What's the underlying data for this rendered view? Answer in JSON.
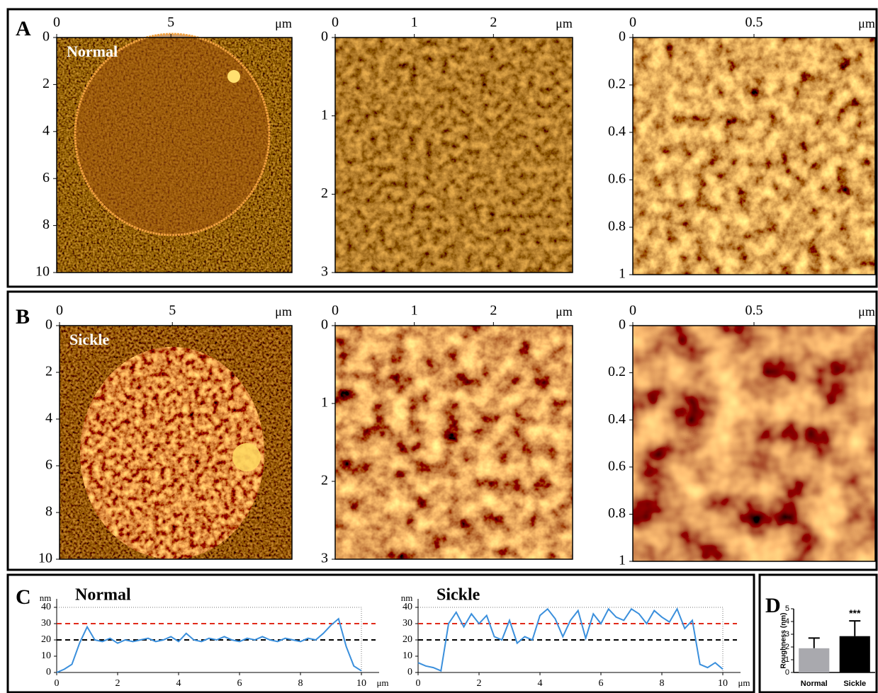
{
  "chart_data": [
    {
      "type": "image",
      "panel_label": "A",
      "annotation": "Normal",
      "x_unit": "μm",
      "xlim": [
        0,
        10.3
      ],
      "xticks": [
        0,
        5
      ],
      "ylim": [
        0,
        10
      ],
      "yticks": [
        0,
        2,
        4,
        6,
        8,
        10
      ]
    },
    {
      "type": "image",
      "x_unit": "μm",
      "xlim": [
        0,
        3
      ],
      "xticks": [
        0,
        1,
        2
      ],
      "ylim": [
        0,
        3
      ],
      "yticks": [
        0,
        1,
        2,
        3
      ]
    },
    {
      "type": "image",
      "x_unit": "μm",
      "xlim": [
        0,
        1
      ],
      "xticks": [
        0,
        0.5
      ],
      "ylim": [
        0,
        1
      ],
      "yticks": [
        0,
        0.2,
        0.4,
        0.6,
        0.8,
        1
      ]
    },
    {
      "type": "image",
      "panel_label": "B",
      "annotation": "Sickle",
      "x_unit": "μm",
      "xlim": [
        0,
        10.3
      ],
      "xticks": [
        0,
        5
      ],
      "ylim": [
        0,
        10
      ],
      "yticks": [
        0,
        2,
        4,
        6,
        8,
        10
      ]
    },
    {
      "type": "image",
      "x_unit": "μm",
      "xlim": [
        0,
        3
      ],
      "xticks": [
        0,
        1,
        2
      ],
      "ylim": [
        0,
        3
      ],
      "yticks": [
        0,
        1,
        2,
        3
      ]
    },
    {
      "type": "image",
      "x_unit": "μm",
      "xlim": [
        0,
        1
      ],
      "xticks": [
        0,
        0.5
      ],
      "ylim": [
        0,
        1
      ],
      "yticks": [
        0,
        0.2,
        0.4,
        0.6,
        0.8,
        1
      ]
    },
    {
      "type": "line",
      "panel_label": "C",
      "title": "Normal",
      "y_unit": "nm",
      "x_unit": "μm",
      "x": [
        0,
        0.25,
        0.5,
        0.75,
        1,
        1.25,
        1.5,
        1.75,
        2,
        2.25,
        2.5,
        2.75,
        3,
        3.25,
        3.5,
        3.75,
        4,
        4.25,
        4.5,
        4.75,
        5,
        5.25,
        5.5,
        5.75,
        6,
        6.25,
        6.5,
        6.75,
        7,
        7.25,
        7.5,
        7.75,
        8,
        8.25,
        8.5,
        8.75,
        9,
        9.25,
        9.5,
        9.75,
        10
      ],
      "series": [
        {
          "color": "#3a8fdc",
          "values": [
            0,
            2,
            5,
            18,
            28,
            20,
            19,
            21,
            18,
            20,
            19,
            20,
            21,
            19,
            20,
            22,
            19,
            24,
            20,
            19,
            21,
            20,
            22,
            20,
            19,
            21,
            20,
            22,
            20,
            19,
            21,
            20,
            19,
            21,
            20,
            24,
            29,
            33,
            16,
            4,
            1
          ]
        }
      ],
      "reference_lines": [
        {
          "value": 30,
          "color": "#e02a1a"
        },
        {
          "value": 20,
          "color": "#000000"
        }
      ],
      "xlim": [
        0,
        10
      ],
      "xticks": [
        0,
        2,
        4,
        6,
        8,
        10
      ],
      "ylim": [
        0,
        40
      ],
      "yticks": [
        0,
        10,
        20,
        30,
        40
      ]
    },
    {
      "type": "line",
      "title": "Sickle",
      "y_unit": "nm",
      "x_unit": "μm",
      "x": [
        0,
        0.25,
        0.5,
        0.75,
        1,
        1.25,
        1.5,
        1.75,
        2,
        2.25,
        2.5,
        2.75,
        3,
        3.25,
        3.5,
        3.75,
        4,
        4.25,
        4.5,
        4.75,
        5,
        5.25,
        5.5,
        5.75,
        6,
        6.25,
        6.5,
        6.75,
        7,
        7.25,
        7.5,
        7.75,
        8,
        8.25,
        8.5,
        8.75,
        9,
        9.25,
        9.5,
        9.75,
        10
      ],
      "series": [
        {
          "color": "#3a8fdc",
          "values": [
            6,
            4,
            3,
            1,
            30,
            37,
            28,
            36,
            30,
            35,
            22,
            20,
            32,
            18,
            22,
            20,
            35,
            39,
            33,
            22,
            32,
            38,
            21,
            36,
            30,
            39,
            34,
            32,
            39,
            36,
            30,
            38,
            34,
            31,
            39,
            27,
            32,
            5,
            3,
            6,
            2
          ]
        }
      ],
      "reference_lines": [
        {
          "value": 30,
          "color": "#e02a1a"
        },
        {
          "value": 20,
          "color": "#000000"
        }
      ],
      "xlim": [
        0,
        10
      ],
      "xticks": [
        0,
        2,
        4,
        6,
        8,
        10
      ],
      "ylim": [
        0,
        40
      ],
      "yticks": [
        0,
        10,
        20,
        30,
        40
      ]
    },
    {
      "type": "bar",
      "panel_label": "D",
      "y_label": "Roughness (nm)",
      "categories": [
        "Normal",
        "Sickle"
      ],
      "values": [
        1.9,
        2.85
      ],
      "errors": [
        0.8,
        1.2
      ],
      "colors": [
        "#a9a9ae",
        "#000000"
      ],
      "annotations": [
        {
          "category": "Sickle",
          "text": "***"
        }
      ],
      "ylim": [
        0,
        5
      ],
      "yticks": [
        0,
        1,
        2,
        3,
        4,
        5
      ]
    }
  ]
}
